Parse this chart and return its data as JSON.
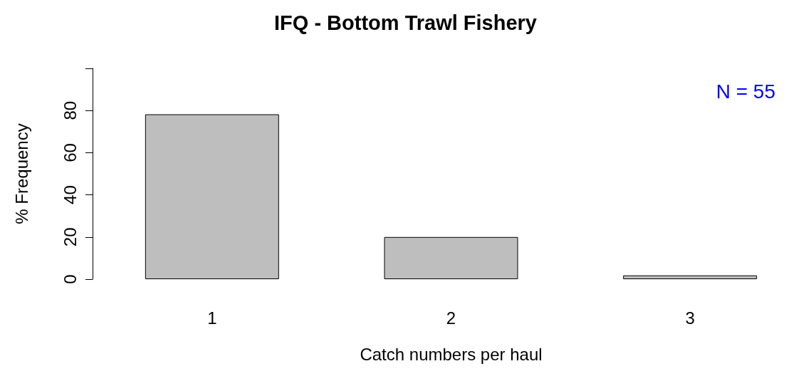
{
  "chart_data": {
    "type": "bar",
    "title": "IFQ - Bottom Trawl Fishery",
    "xlabel": "Catch numbers per haul",
    "ylabel": "% Frequency",
    "categories": [
      "1",
      "2",
      "3"
    ],
    "values": [
      78.2,
      20,
      1.8
    ],
    "color": "#bebebe",
    "ylim": [
      0,
      100
    ],
    "yticks": [
      0,
      20,
      40,
      60,
      80,
      {
        "value": 100,
        "label": null
      }
    ],
    "grid": false,
    "annotations": [
      "N = 55"
    ]
  }
}
